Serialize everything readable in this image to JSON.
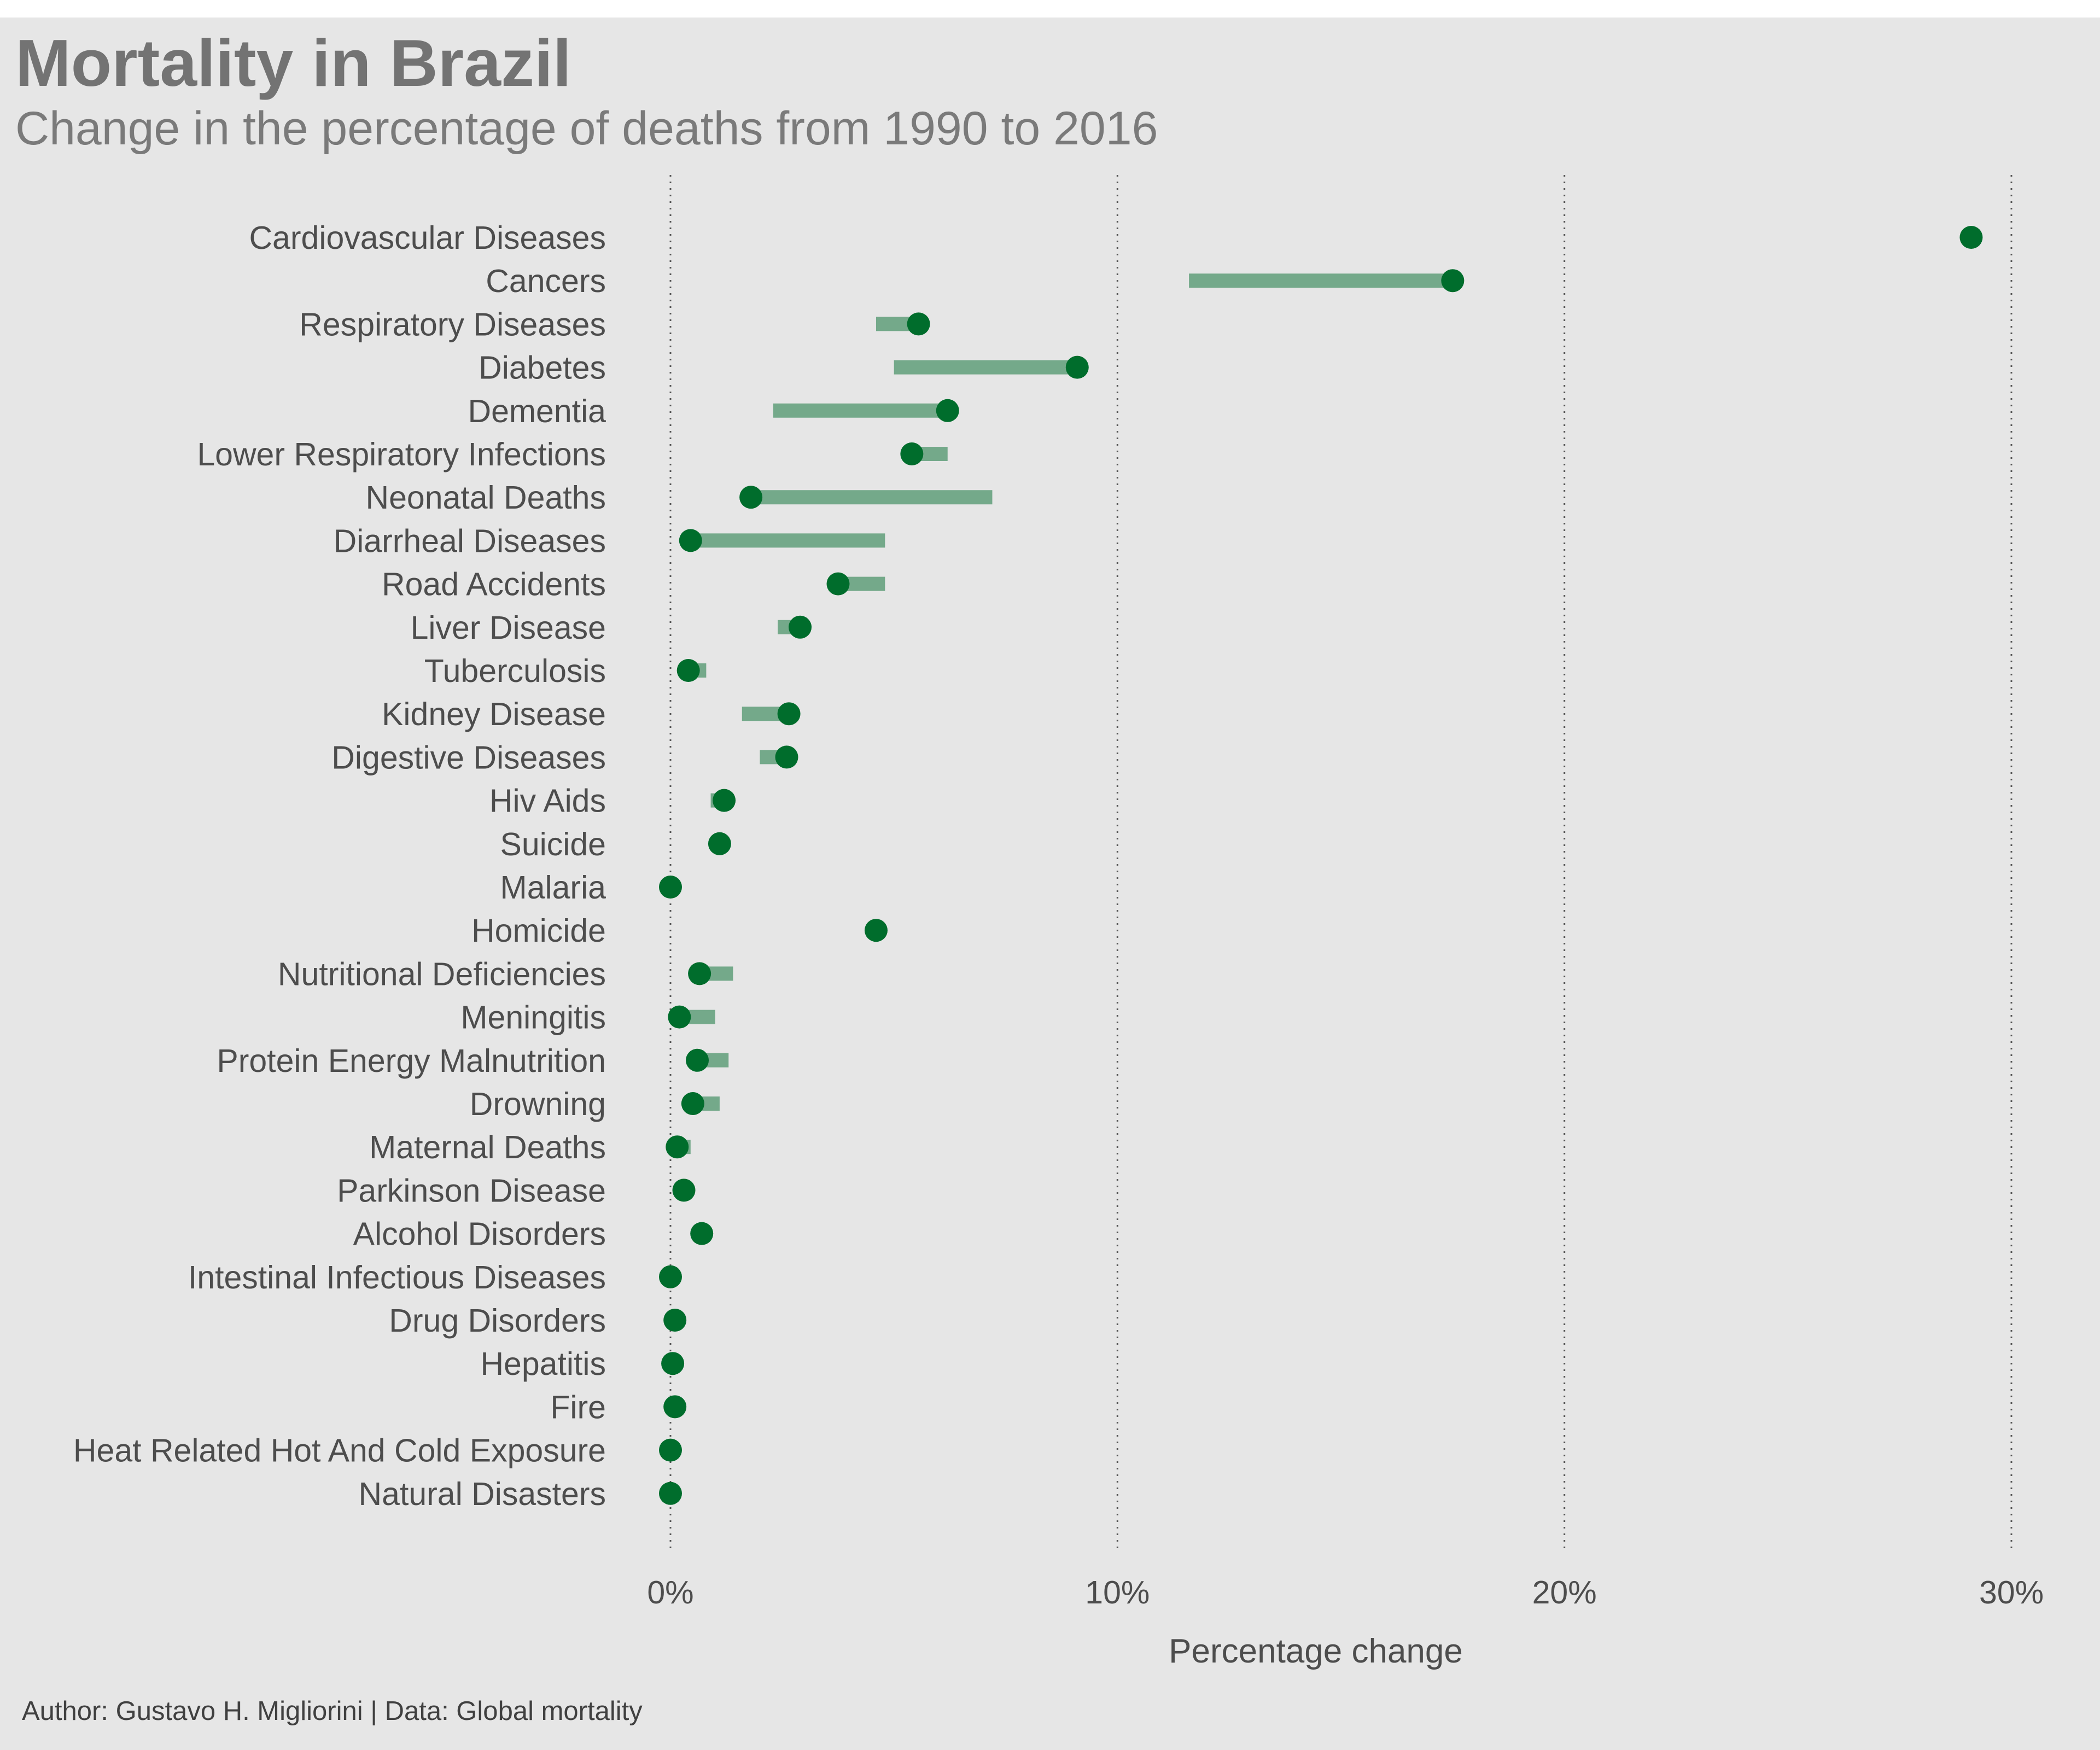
{
  "title": "Mortality in Brazil",
  "subtitle": "Change in the percentage of deaths from 1990 to 2016",
  "caption": "Author: Gustavo H. Migliorini | Data: Global mortality",
  "colors": {
    "background": "#e6e6e6",
    "segment": "#74a98a",
    "point": "#006d2c",
    "grid": "#555555"
  },
  "chart_data": {
    "type": "dumbbell",
    "xlabel": "Percentage change",
    "xlim": [
      0,
      30
    ],
    "xticks": [
      0,
      10,
      20,
      30
    ],
    "xtick_labels": [
      "0%",
      "10%",
      "20%",
      "30%"
    ],
    "grid": "vertical dotted",
    "categories": [
      "Cardiovascular Diseases",
      "Cancers",
      "Respiratory Diseases",
      "Diabetes",
      "Dementia",
      "Lower Respiratory Infections",
      "Neonatal Deaths",
      "Diarrheal Diseases",
      "Road Accidents",
      "Liver Disease",
      "Tuberculosis",
      "Kidney Disease",
      "Digestive Diseases",
      "Hiv Aids",
      "Suicide",
      "Malaria",
      "Homicide",
      "Nutritional Deficiencies",
      "Meningitis",
      "Protein Energy Malnutrition",
      "Drowning",
      "Maternal Deaths",
      "Parkinson Disease",
      "Alcohol Disorders",
      "Intestinal Infectious Diseases",
      "Drug Disorders",
      "Hepatitis",
      "Fire",
      "Heat Related Hot And Cold Exposure",
      "Natural Disasters"
    ],
    "series": [
      {
        "values": [
          29.0,
          11.6,
          4.6,
          5.0,
          2.3,
          6.2,
          7.2,
          4.8,
          4.8,
          2.4,
          0.8,
          1.6,
          2.0,
          0.9,
          1.1,
          0.0,
          4.6,
          1.4,
          1.0,
          1.3,
          1.1,
          0.45,
          0.3,
          0.5,
          0.0,
          0.1,
          0.05,
          0.1,
          0.0,
          0.0
        ]
      },
      {
        "values": [
          29.1,
          17.5,
          5.55,
          9.1,
          6.2,
          5.4,
          1.8,
          0.45,
          3.75,
          2.9,
          0.4,
          2.65,
          2.6,
          1.2,
          1.1,
          0.0,
          4.6,
          0.65,
          0.2,
          0.6,
          0.5,
          0.15,
          0.3,
          0.7,
          0.0,
          0.1,
          0.05,
          0.1,
          0.0,
          0.0
        ]
      }
    ]
  }
}
